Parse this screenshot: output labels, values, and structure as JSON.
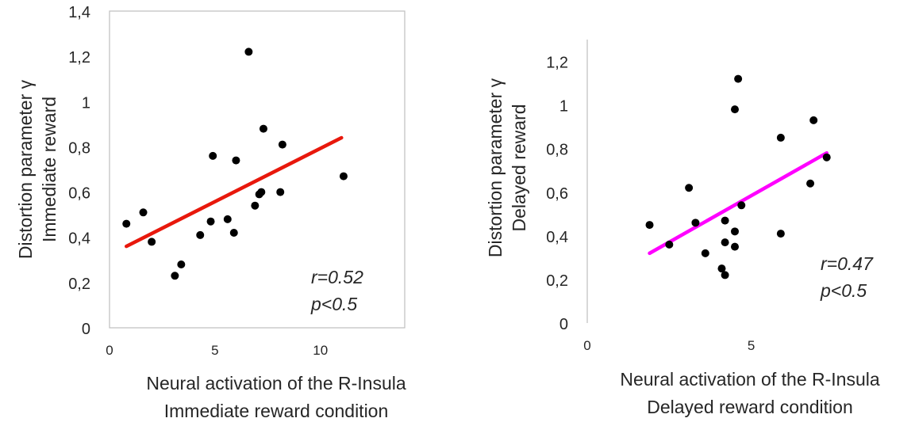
{
  "chart_data": [
    {
      "type": "scatter",
      "ylabel_lines": [
        "Distortion parameter γ",
        "Immediate reward"
      ],
      "xlabel_lines": [
        "Neural activation of the R-Insula",
        "Immediate reward condition"
      ],
      "xlim": [
        0,
        14
      ],
      "ylim": [
        0,
        1.4
      ],
      "x_ticks": [
        0,
        5,
        10
      ],
      "x_tick_labels": [
        "0",
        "5",
        "10"
      ],
      "y_ticks": [
        0,
        0.2,
        0.4,
        0.6,
        0.8,
        1.0,
        1.2,
        1.4
      ],
      "y_tick_labels": [
        "0",
        "0,2",
        "0,4",
        "0,6",
        "0,8",
        "1",
        "1,2",
        "1,4"
      ],
      "grid": false,
      "marker_color": "#000000",
      "trendline_color": "#e8180c",
      "points": [
        {
          "x": 0.8,
          "y": 0.46
        },
        {
          "x": 1.6,
          "y": 0.51
        },
        {
          "x": 2.0,
          "y": 0.38
        },
        {
          "x": 3.1,
          "y": 0.23
        },
        {
          "x": 3.4,
          "y": 0.28
        },
        {
          "x": 4.3,
          "y": 0.41
        },
        {
          "x": 4.8,
          "y": 0.47
        },
        {
          "x": 4.9,
          "y": 0.76
        },
        {
          "x": 5.6,
          "y": 0.48
        },
        {
          "x": 5.9,
          "y": 0.42
        },
        {
          "x": 6.0,
          "y": 0.74
        },
        {
          "x": 6.6,
          "y": 1.22
        },
        {
          "x": 6.9,
          "y": 0.54
        },
        {
          "x": 7.1,
          "y": 0.59
        },
        {
          "x": 7.2,
          "y": 0.6
        },
        {
          "x": 7.3,
          "y": 0.88
        },
        {
          "x": 8.1,
          "y": 0.6
        },
        {
          "x": 8.2,
          "y": 0.81
        },
        {
          "x": 11.1,
          "y": 0.67
        }
      ],
      "trendline": [
        {
          "x": 0.8,
          "y": 0.36
        },
        {
          "x": 11.0,
          "y": 0.84
        }
      ],
      "annotations": [
        "r=0.52",
        "p<0.5"
      ]
    },
    {
      "type": "scatter",
      "ylabel_lines": [
        "Distortion parameter γ",
        "Delayed reward"
      ],
      "xlabel_lines": [
        "Neural activation of the R-Insula",
        "Delayed reward condition"
      ],
      "xlim": [
        0,
        9
      ],
      "ylim": [
        0,
        1.3
      ],
      "x_ticks": [
        0,
        5
      ],
      "x_tick_labels": [
        "0",
        "5"
      ],
      "y_ticks": [
        0,
        0.2,
        0.4,
        0.6,
        0.8,
        1.0,
        1.2
      ],
      "y_tick_labels": [
        "0",
        "0,2",
        "0,4",
        "0,6",
        "0,8",
        "1",
        "1,2"
      ],
      "grid": false,
      "marker_color": "#000000",
      "trendline_color": "#ff00ff",
      "points": [
        {
          "x": 1.9,
          "y": 0.45
        },
        {
          "x": 2.5,
          "y": 0.36
        },
        {
          "x": 3.1,
          "y": 0.62
        },
        {
          "x": 3.3,
          "y": 0.46
        },
        {
          "x": 3.6,
          "y": 0.32
        },
        {
          "x": 4.1,
          "y": 0.25
        },
        {
          "x": 4.2,
          "y": 0.22
        },
        {
          "x": 4.2,
          "y": 0.47
        },
        {
          "x": 4.2,
          "y": 0.37
        },
        {
          "x": 4.5,
          "y": 0.42
        },
        {
          "x": 4.5,
          "y": 0.35
        },
        {
          "x": 4.5,
          "y": 0.98
        },
        {
          "x": 4.6,
          "y": 1.12
        },
        {
          "x": 4.7,
          "y": 0.54
        },
        {
          "x": 5.9,
          "y": 0.85
        },
        {
          "x": 5.9,
          "y": 0.41
        },
        {
          "x": 6.8,
          "y": 0.64
        },
        {
          "x": 6.9,
          "y": 0.93
        },
        {
          "x": 7.3,
          "y": 0.76
        }
      ],
      "trendline": [
        {
          "x": 1.9,
          "y": 0.32
        },
        {
          "x": 7.3,
          "y": 0.78
        }
      ],
      "annotations": [
        "r=0.47",
        "p<0.5"
      ]
    }
  ]
}
